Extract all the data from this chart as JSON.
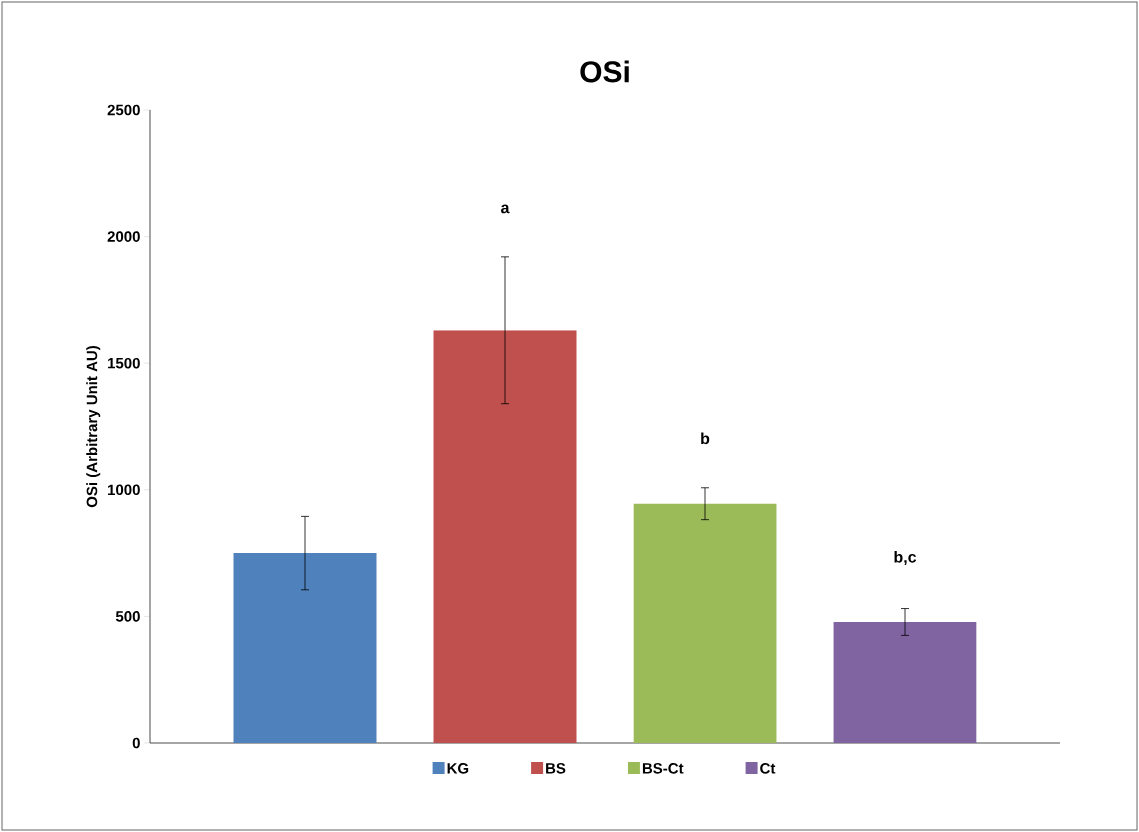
{
  "chart_data": {
    "type": "bar",
    "title": "OSi",
    "ylabel": "OSi (Arbitrary Unit AU)",
    "categories": [
      null
    ],
    "series": [
      {
        "name": "KG",
        "color": "#4f81bd",
        "values": [
          750
        ],
        "errors": [
          145
        ]
      },
      {
        "name": "BS",
        "color": "#c0504d",
        "values": [
          1630
        ],
        "errors": [
          290
        ]
      },
      {
        "name": "BS-Ct",
        "color": "#9bbb59",
        "values": [
          945
        ],
        "errors": [
          63
        ]
      },
      {
        "name": "Ct",
        "color": "#8064a2",
        "values": [
          478
        ],
        "errors": [
          53
        ]
      }
    ],
    "ylim": [
      0,
      2500
    ],
    "yticks": [
      0,
      500,
      1000,
      1500,
      2000,
      2500
    ],
    "grid": false,
    "legend": "bottom",
    "annotations": [
      "a",
      "b",
      "b,c"
    ]
  }
}
